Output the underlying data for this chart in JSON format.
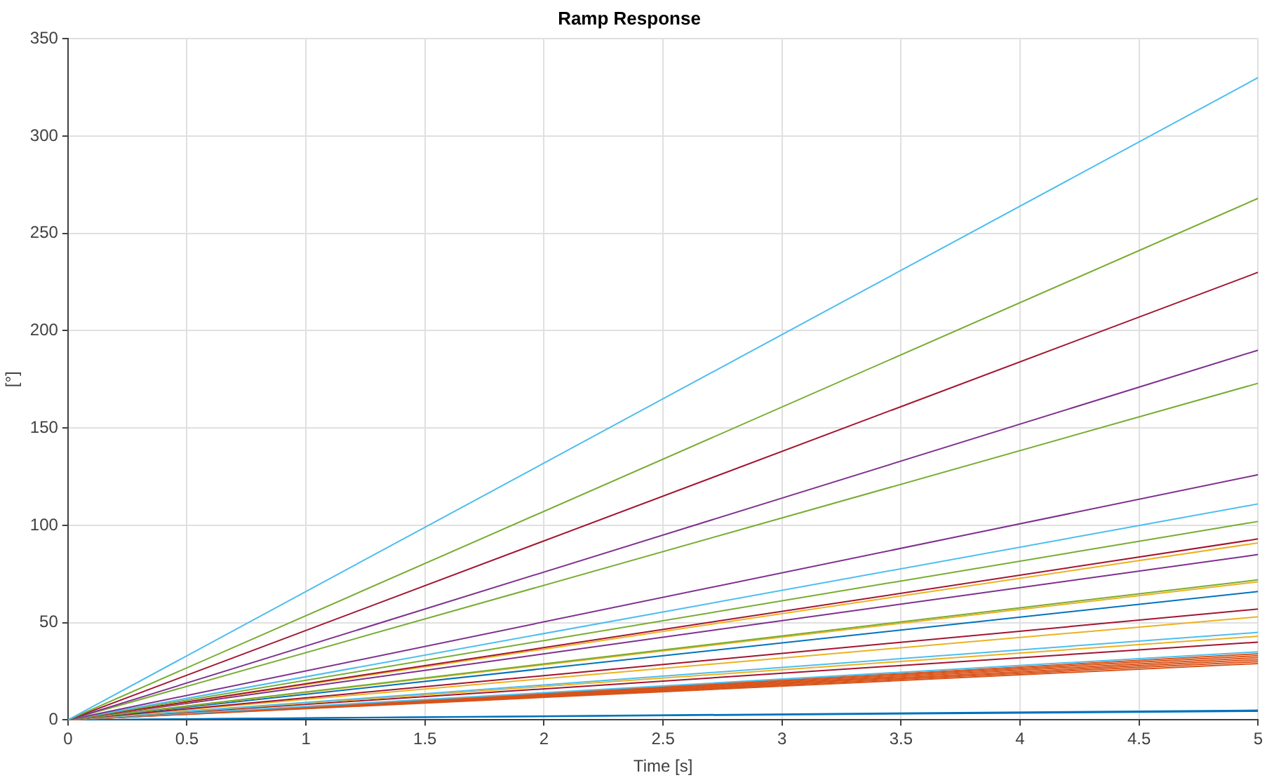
{
  "chart_data": {
    "type": "line",
    "title": "Ramp Response",
    "xlabel": "Time [s]",
    "ylabel": "[°]",
    "x": [
      0,
      5
    ],
    "xlim": [
      0,
      5
    ],
    "xticks": [
      0,
      0.5,
      1,
      1.5,
      2,
      2.5,
      3,
      3.5,
      4,
      4.5,
      5
    ],
    "ylim": [
      0,
      350
    ],
    "yticks": [
      0,
      50,
      100,
      150,
      200,
      250,
      300,
      350
    ],
    "grid": true,
    "legend": false,
    "marker": "none",
    "line_style": "solid",
    "series": [
      {
        "color": "#4dbeee",
        "values": [
          0,
          330
        ]
      },
      {
        "color": "#77ac30",
        "values": [
          0,
          268
        ]
      },
      {
        "color": "#a2142f",
        "values": [
          0,
          230
        ]
      },
      {
        "color": "#7e2f8e",
        "values": [
          0,
          190
        ]
      },
      {
        "color": "#77ac30",
        "values": [
          0,
          173
        ]
      },
      {
        "color": "#7e2f8e",
        "values": [
          0,
          126
        ]
      },
      {
        "color": "#4dbeee",
        "values": [
          0,
          111
        ]
      },
      {
        "color": "#77ac30",
        "values": [
          0,
          102
        ]
      },
      {
        "color": "#a2142f",
        "values": [
          0,
          93
        ]
      },
      {
        "color": "#edb120",
        "values": [
          0,
          91
        ]
      },
      {
        "color": "#7e2f8e",
        "values": [
          0,
          85
        ]
      },
      {
        "color": "#77ac30",
        "values": [
          0,
          72
        ]
      },
      {
        "color": "#edb120",
        "values": [
          0,
          71
        ]
      },
      {
        "color": "#0072bd",
        "values": [
          0,
          66
        ]
      },
      {
        "color": "#a2142f",
        "values": [
          0,
          57
        ]
      },
      {
        "color": "#edb120",
        "values": [
          0,
          53
        ]
      },
      {
        "color": "#4dbeee",
        "values": [
          0,
          45
        ]
      },
      {
        "color": "#edb120",
        "values": [
          0,
          43
        ]
      },
      {
        "color": "#a2142f",
        "values": [
          0,
          40
        ]
      },
      {
        "color": "#4dbeee",
        "values": [
          0,
          35
        ]
      },
      {
        "color": "#d95319",
        "values": [
          0,
          34
        ]
      },
      {
        "color": "#d95319",
        "values": [
          0,
          33
        ]
      },
      {
        "color": "#d95319",
        "values": [
          0,
          32
        ]
      },
      {
        "color": "#d95319",
        "values": [
          0,
          31
        ]
      },
      {
        "color": "#d95319",
        "values": [
          0,
          30
        ]
      },
      {
        "color": "#d95319",
        "values": [
          0,
          29
        ]
      },
      {
        "color": "#0072bd",
        "values": [
          0,
          5
        ]
      },
      {
        "color": "#0072bd",
        "values": [
          0,
          4.5
        ]
      }
    ]
  }
}
